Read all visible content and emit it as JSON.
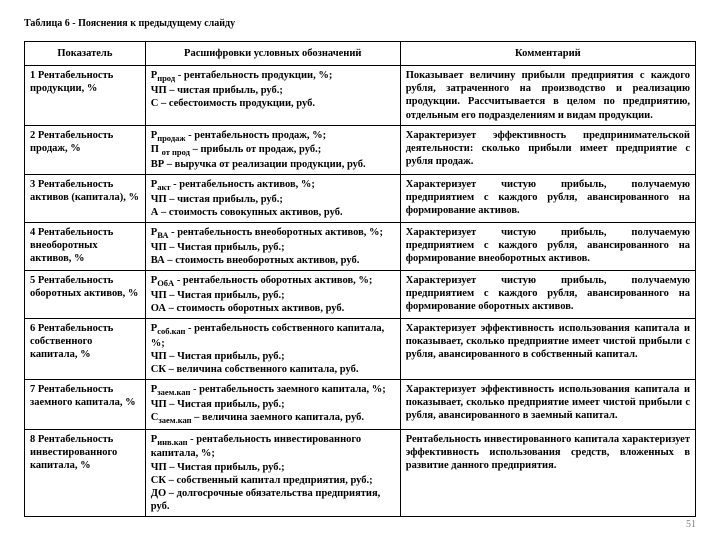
{
  "caption": "Таблица 6 - Пояснения к предыдущему слайду",
  "headers": {
    "col1": "Показатель",
    "col2": "Расшифровки условных обозначений",
    "col3": "Комментарий"
  },
  "rows": {
    "r1": {
      "indicator": "1 Рентабельность продукции, %",
      "decode": "Р<sub>прод</sub> - рентабельность продукции, %;<br>ЧП – чистая прибыль, руб.;<br>С – себестоимость продукции, руб.",
      "comment": "Показывает величину прибыли предприятия с каждого рубля, затраченного на производство и реализацию продукции. Рассчитывается в целом по предприятию, отдельным его подразделениям и видам продукции."
    },
    "r2": {
      "indicator": "2 Рентабельность продаж, %",
      "decode": "Р<sub>продаж</sub> - рентабельность продаж, %;<br>П <sub>от прод</sub> – прибыль от продаж, руб.;<br>ВР – выручка от реализации продукции, руб.",
      "comment": "Характеризует эффективность предпринимательской деятельности: сколько прибыли имеет предприятие с рубля продаж."
    },
    "r3": {
      "indicator": "3 Рентабельность активов (капитала), %",
      "decode": "Р<sub>акт</sub> - рентабельность активов, %;<br>ЧП – чистая прибыль, руб.;<br>А – стоимость совокупных активов, руб.",
      "comment": "Характеризует чистую прибыль, получаемую предприятием с каждого рубля, авансированного на формирование активов."
    },
    "r4": {
      "indicator": "4 Рентабельность внеоборотных активов, %",
      "decode": "Р<sub>ВА</sub> - рентабельность внеоборотных активов, %;<br>ЧП – Чистая прибыль, руб.;<br>ВА – стоимость внеоборотных активов, руб.",
      "comment": "Характеризует чистую прибыль, получаемую предприятием с каждого рубля, авансированного на формирование внеоборотных активов."
    },
    "r5": {
      "indicator": "5 Рентабельность оборотных активов, %",
      "decode": "Р<sub>ОбА</sub> - рентабельность оборотных активов, %;<br>ЧП – Чистая прибыль, руб.;<br>ОА – стоимость оборотных активов, руб.",
      "comment": "Характеризует чистую прибыль, получаемую предприятием с каждого рубля, авансированного на формирование оборотных активов."
    },
    "r6": {
      "indicator": "6 Рентабельность собственного капитала, %",
      "decode": "Р<sub>соб.кап</sub> - рентабельность собственного капитала, %;<br>ЧП – Чистая прибыль, руб.;<br>СК – величина собственного капитала, руб.",
      "comment": "Характеризует эффективность использования капитала и показывает, сколько предприятие имеет чистой прибыли с рубля, авансированного в собственный капитал."
    },
    "r7": {
      "indicator": "7 Рентабельность заемного капитала, %",
      "decode": "Р<sub>заем.кап</sub> - рентабельность заемного капитала, %;<br>ЧП – Чистая прибыль, руб.;<br>С<sub>заем.кап</sub> – величина заемного капитала, руб.",
      "comment": "Характеризует эффективность использования капитала и показывает, сколько предприятие имеет чистой прибыли с рубля, авансированного в заемный капитал."
    },
    "r8": {
      "indicator": "8 Рентабельность инвестированного капитала, %",
      "decode": "Р<sub>инв.кап</sub> - рентабельность инвестированного капитала, %;<br>ЧП – Чистая прибыль, руб.;<br>СК – собственный капитал предприятия, руб.;<br>ДО – долгосрочные обязательства предприятия, руб.",
      "comment": "Рентабельность инвестированного капитала характеризует эффективность использования средств, вложенных в развитие данного предприятия."
    }
  },
  "pagenum": "51"
}
